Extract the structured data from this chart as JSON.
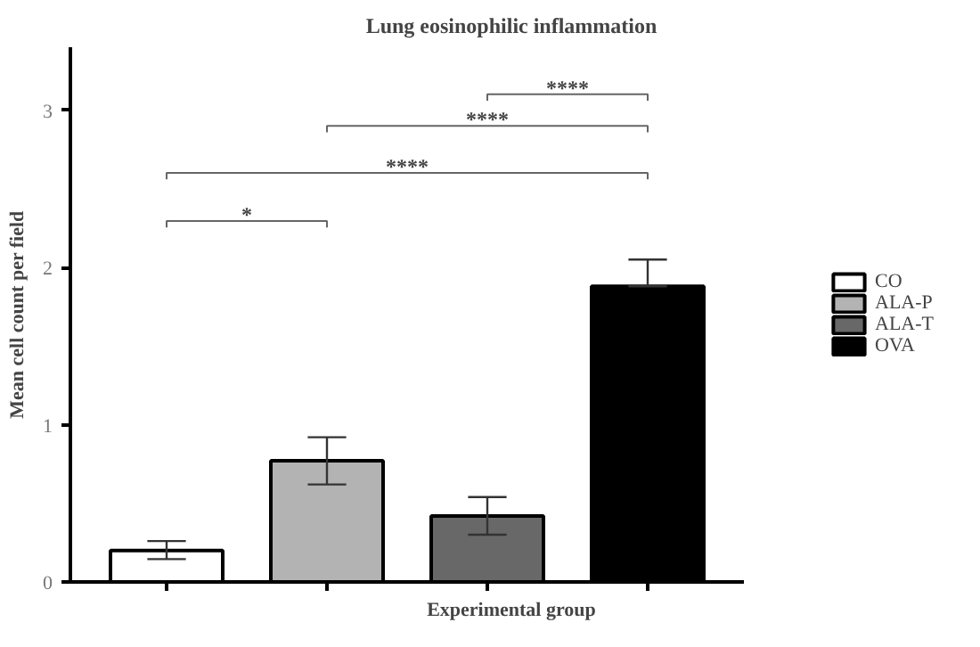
{
  "chart_data": {
    "type": "bar",
    "title": "Lung eosinophilic inflammation",
    "xlabel": "Experimental group",
    "ylabel": "Mean cell count per field",
    "categories": [
      null,
      null,
      null,
      null
    ],
    "series": [
      {
        "name": "CO",
        "color": "#ffffff",
        "values": [
          0.2,
          null,
          null,
          null
        ],
        "errors": [
          [
            0.145,
            0.26
          ],
          null,
          null,
          null
        ]
      },
      {
        "name": "ALA-P",
        "color": "#b3b3b3",
        "values": [
          null,
          0.77,
          null,
          null
        ],
        "errors": [
          null,
          [
            0.62,
            0.92
          ],
          null,
          null
        ]
      },
      {
        "name": "ALA-T",
        "color": "#686868",
        "values": [
          null,
          null,
          0.42,
          null
        ],
        "errors": [
          null,
          null,
          [
            0.3,
            0.54
          ],
          null
        ]
      },
      {
        "name": "OVA",
        "color": "#000000",
        "values": [
          null,
          null,
          null,
          1.88
        ],
        "errors": [
          null,
          null,
          null,
          [
            1.88,
            2.05
          ]
        ]
      }
    ],
    "ylim": [
      0,
      3.4
    ],
    "yticks": [
      0,
      1,
      2,
      3
    ],
    "grid": false,
    "legend": "right",
    "annotations": [
      "*",
      "****",
      "****",
      "****"
    ]
  }
}
